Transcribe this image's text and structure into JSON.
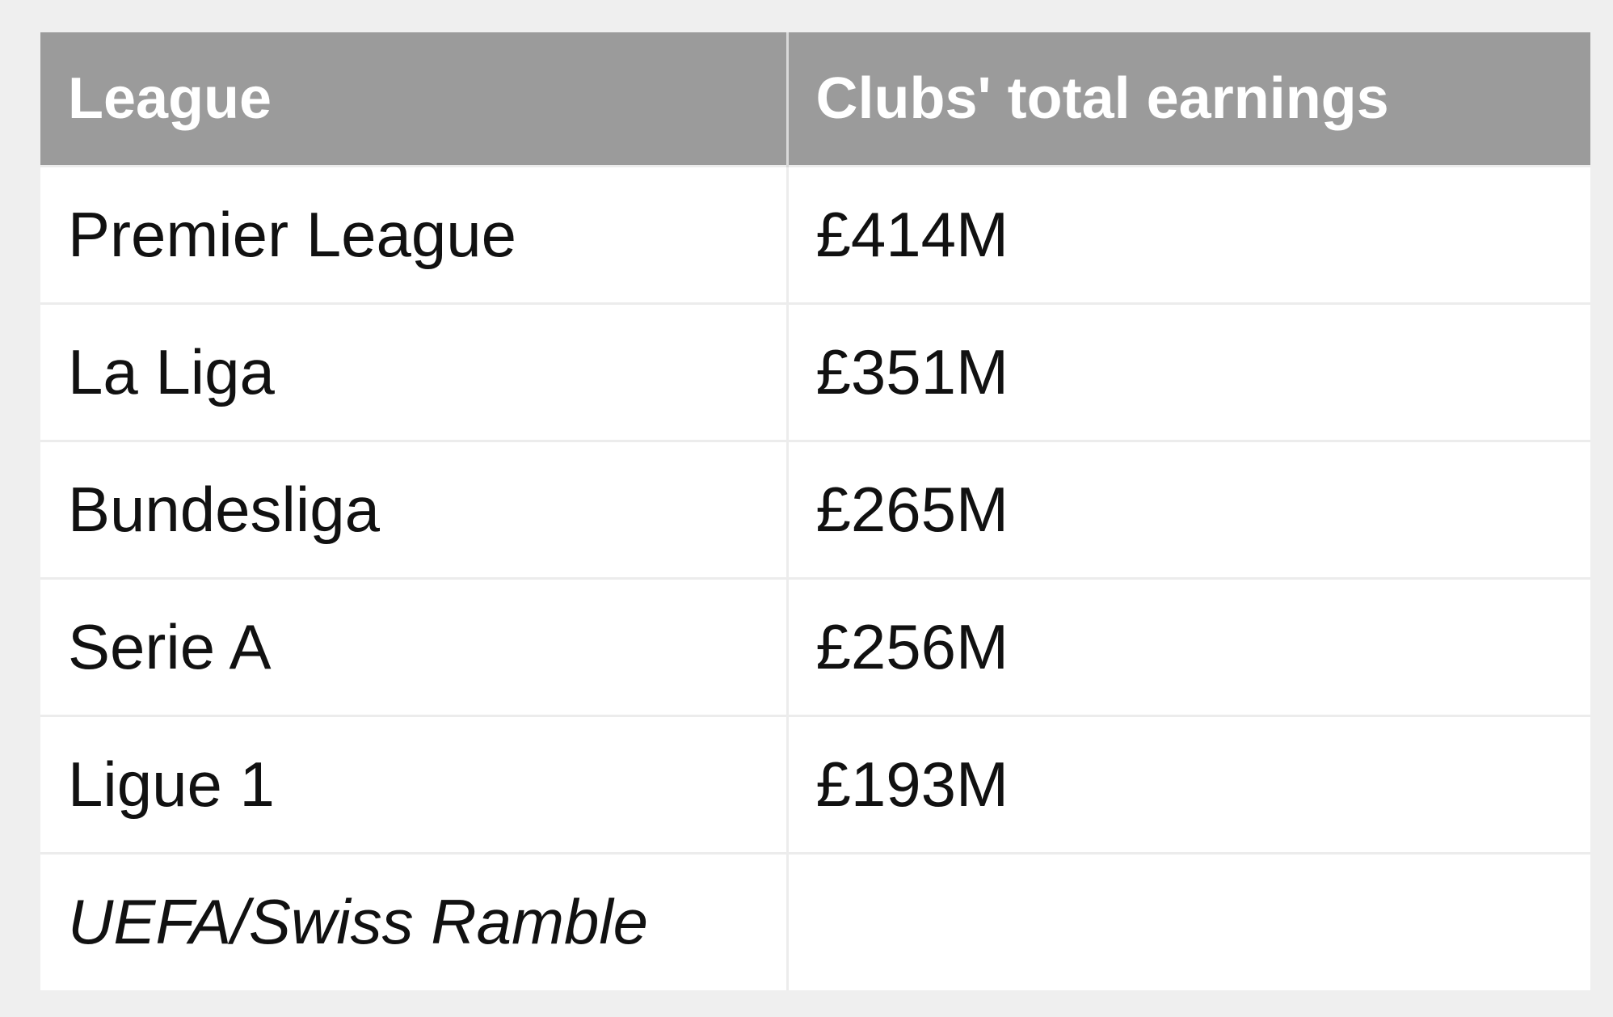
{
  "table": {
    "headers": [
      "League",
      "Clubs' total earnings"
    ],
    "rows": [
      {
        "league": "Premier League",
        "earnings": "£414M"
      },
      {
        "league": "La Liga",
        "earnings": "£351M"
      },
      {
        "league": "Bundesliga",
        "earnings": "£265M"
      },
      {
        "league": "Serie A",
        "earnings": "£256M"
      },
      {
        "league": "Ligue 1",
        "earnings": "£193M"
      }
    ],
    "source": "UEFA/Swiss Ramble"
  }
}
